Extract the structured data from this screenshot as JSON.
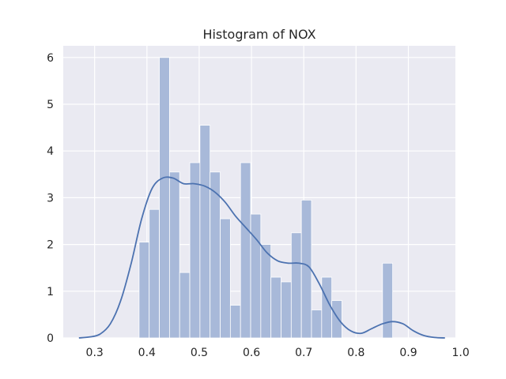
{
  "chart_data": {
    "type": "bar",
    "title": "Histogram of NOX",
    "xlabel": "",
    "ylabel": "",
    "xlim": [
      0.24,
      0.99
    ],
    "ylim": [
      0,
      6.25
    ],
    "xticks": [
      0.3,
      0.4,
      0.5,
      0.6,
      0.7,
      0.8,
      0.9,
      1.0
    ],
    "xtick_labels": [
      "0.3",
      "0.4",
      "0.5",
      "0.6",
      "0.7",
      "0.8",
      "0.9",
      "1.0"
    ],
    "yticks": [
      0,
      1,
      2,
      3,
      4,
      5,
      6
    ],
    "ytick_labels": [
      "0",
      "1",
      "2",
      "3",
      "4",
      "5",
      "6"
    ],
    "grid": true,
    "bin_width": 0.0194,
    "bins": [
      {
        "start": 0.385,
        "value": 2.05
      },
      {
        "start": 0.4044,
        "value": 2.75
      },
      {
        "start": 0.4238,
        "value": 6.0
      },
      {
        "start": 0.4432,
        "value": 3.55
      },
      {
        "start": 0.4626,
        "value": 1.4
      },
      {
        "start": 0.482,
        "value": 3.75
      },
      {
        "start": 0.5014,
        "value": 4.55
      },
      {
        "start": 0.5208,
        "value": 3.55
      },
      {
        "start": 0.5402,
        "value": 2.55
      },
      {
        "start": 0.5596,
        "value": 0.7
      },
      {
        "start": 0.579,
        "value": 3.75
      },
      {
        "start": 0.5984,
        "value": 2.65
      },
      {
        "start": 0.6178,
        "value": 2.0
      },
      {
        "start": 0.6372,
        "value": 1.3
      },
      {
        "start": 0.6566,
        "value": 1.2
      },
      {
        "start": 0.676,
        "value": 2.25
      },
      {
        "start": 0.6954,
        "value": 2.95
      },
      {
        "start": 0.7148,
        "value": 0.6
      },
      {
        "start": 0.7342,
        "value": 1.3
      },
      {
        "start": 0.7536,
        "value": 0.8
      },
      {
        "start": 0.773,
        "value": 0
      },
      {
        "start": 0.7924,
        "value": 0
      },
      {
        "start": 0.8118,
        "value": 0
      },
      {
        "start": 0.8312,
        "value": 0
      },
      {
        "start": 0.8506,
        "value": 1.6
      }
    ],
    "kde": {
      "x": [
        0.27,
        0.29,
        0.31,
        0.33,
        0.35,
        0.37,
        0.39,
        0.41,
        0.43,
        0.45,
        0.47,
        0.49,
        0.51,
        0.53,
        0.55,
        0.57,
        0.59,
        0.61,
        0.63,
        0.65,
        0.67,
        0.69,
        0.71,
        0.73,
        0.75,
        0.77,
        0.79,
        0.81,
        0.83,
        0.85,
        0.87,
        0.89,
        0.91,
        0.93,
        0.95,
        0.97
      ],
      "y": [
        0.0,
        0.02,
        0.08,
        0.3,
        0.8,
        1.6,
        2.55,
        3.2,
        3.42,
        3.42,
        3.3,
        3.3,
        3.25,
        3.12,
        2.9,
        2.6,
        2.35,
        2.1,
        1.82,
        1.65,
        1.6,
        1.6,
        1.52,
        1.15,
        0.7,
        0.35,
        0.15,
        0.1,
        0.2,
        0.3,
        0.35,
        0.3,
        0.15,
        0.05,
        0.01,
        0.0
      ]
    },
    "colors": {
      "background": "#eaeaf2",
      "grid": "#ffffff",
      "bar": "#a8b9d9",
      "bar_edge": "#ffffff",
      "kde": "#4c72b0",
      "text": "#262626"
    }
  }
}
